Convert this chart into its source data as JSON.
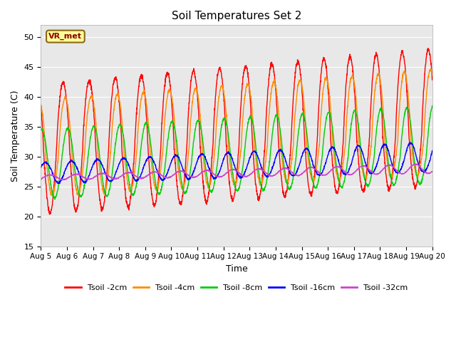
{
  "title": "Soil Temperatures Set 2",
  "xlabel": "Time",
  "ylabel": "Soil Temperature (C)",
  "ylim": [
    15,
    52
  ],
  "yticks": [
    15,
    20,
    25,
    30,
    35,
    40,
    45,
    50
  ],
  "annotation": "VR_met",
  "colors": {
    "Tsoil -2cm": "#ff0000",
    "Tsoil -4cm": "#ff8c00",
    "Tsoil -8cm": "#00cc00",
    "Tsoil -16cm": "#0000ff",
    "Tsoil -32cm": "#cc44cc"
  },
  "bg_color": "#e8e8e8",
  "grid_color": "#ffffff",
  "xtick_labels": [
    "Aug 5",
    "Aug 6",
    "Aug 7",
    "Aug 8",
    "Aug 9",
    "Aug 10",
    "Aug 11",
    "Aug 12",
    "Aug 13",
    "Aug 14",
    "Aug 15",
    "Aug 16",
    "Aug 17",
    "Aug 18",
    "Aug 19",
    "Aug 20"
  ]
}
